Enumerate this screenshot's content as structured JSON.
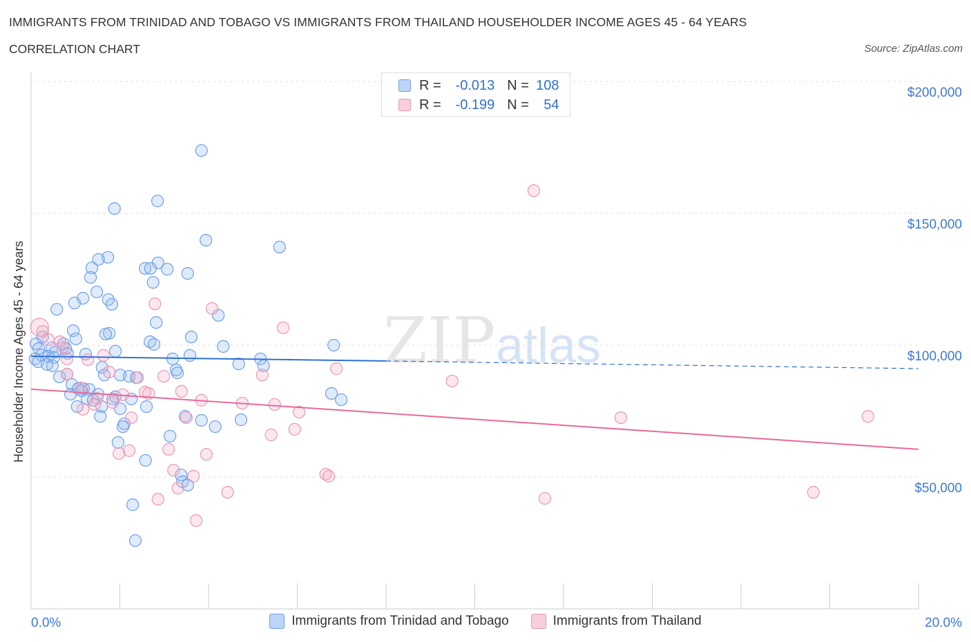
{
  "header": {
    "title": "IMMIGRANTS FROM TRINIDAD AND TOBAGO VS IMMIGRANTS FROM THAILAND HOUSEHOLDER INCOME AGES 45 - 64 YEARS",
    "subtitle": "CORRELATION CHART",
    "source": "Source: ZipAtlas.com"
  },
  "legend": [
    {
      "r_label": "R =",
      "r": "-0.013",
      "n_label": "N =",
      "n": "108"
    },
    {
      "r_label": "R =",
      "r": "-0.199",
      "n_label": "N =",
      "n": "54"
    }
  ],
  "colors": {
    "blue": "#6f9ee8",
    "blue_line": "#2f6fd3",
    "pink": "#e898b4",
    "pink_line": "#e8689a",
    "axis_text": "#3b78d8"
  },
  "chart_data": {
    "type": "scatter",
    "title": "IMMIGRANTS FROM TRINIDAD AND TOBAGO VS IMMIGRANTS FROM THAILAND HOUSEHOLDER INCOME AGES 45 - 64 YEARS",
    "xlabel": "",
    "ylabel": "Householder Income Ages 45 - 64 years",
    "xlim": [
      0,
      20
    ],
    "ylim": [
      0,
      200000
    ],
    "x_tick_labels": [
      "0.0%",
      "20.0%"
    ],
    "y_ticks": [
      50000,
      100000,
      150000,
      200000
    ],
    "y_tick_labels": [
      "$50,000",
      "$100,000",
      "$150,000",
      "$200,000"
    ],
    "grid": true,
    "legend_position": "bottom",
    "watermark": "ZIPatlas",
    "series": [
      {
        "name": "Immigrants from Trinidad and Tobago",
        "color": "#6f9ee8",
        "trend": [
          [
            0,
            95800
          ],
          [
            8,
            94000
          ],
          [
            20,
            91100
          ]
        ],
        "points": [
          [
            3.84,
            173800
          ],
          [
            1.88,
            151800
          ],
          [
            2.85,
            154700
          ],
          [
            3.94,
            139800
          ],
          [
            5.6,
            137200
          ],
          [
            1.73,
            133300
          ],
          [
            1.52,
            132500
          ],
          [
            2.86,
            131200
          ],
          [
            1.37,
            129300
          ],
          [
            2.57,
            129100
          ],
          [
            2.69,
            129100
          ],
          [
            3.07,
            128800
          ],
          [
            3.53,
            127200
          ],
          [
            1.34,
            125700
          ],
          [
            2.75,
            123800
          ],
          [
            1.48,
            120200
          ],
          [
            1.17,
            117800
          ],
          [
            1.74,
            117300
          ],
          [
            0.98,
            116000
          ],
          [
            1.82,
            115500
          ],
          [
            0.58,
            113600
          ],
          [
            4.22,
            111300
          ],
          [
            2.82,
            108600
          ],
          [
            0.95,
            105500
          ],
          [
            1.76,
            104500
          ],
          [
            1.68,
            104200
          ],
          [
            0.26,
            103100
          ],
          [
            3.61,
            103100
          ],
          [
            1.01,
            102400
          ],
          [
            2.68,
            101300
          ],
          [
            2.77,
            100300
          ],
          [
            0.11,
            100500
          ],
          [
            0.73,
            100500
          ],
          [
            6.82,
            100000
          ],
          [
            4.33,
            99500
          ],
          [
            0.47,
            99000
          ],
          [
            0.78,
            98700
          ],
          [
            0.17,
            98700
          ],
          [
            1.9,
            97700
          ],
          [
            0.54,
            97400
          ],
          [
            0.82,
            96900
          ],
          [
            1.23,
            96600
          ],
          [
            0.23,
            96300
          ],
          [
            3.58,
            96100
          ],
          [
            0.39,
            95800
          ],
          [
            0.51,
            95300
          ],
          [
            0.09,
            94800
          ],
          [
            3.19,
            94800
          ],
          [
            5.17,
            94800
          ],
          [
            0.16,
            93700
          ],
          [
            4.68,
            92900
          ],
          [
            0.36,
            92700
          ],
          [
            5.24,
            92200
          ],
          [
            0.48,
            92200
          ],
          [
            1.6,
            91600
          ],
          [
            3.27,
            90600
          ],
          [
            3.3,
            89500
          ],
          [
            0.81,
            89000
          ],
          [
            1.65,
            88700
          ],
          [
            2.01,
            88700
          ],
          [
            2.21,
            88200
          ],
          [
            0.64,
            88000
          ],
          [
            2.37,
            87700
          ],
          [
            0.92,
            85100
          ],
          [
            1.06,
            83500
          ],
          [
            1.18,
            83500
          ],
          [
            1.31,
            83200
          ],
          [
            1.14,
            82700
          ],
          [
            1.51,
            81400
          ],
          [
            0.89,
            81400
          ],
          [
            6.77,
            81700
          ],
          [
            1.9,
            80400
          ],
          [
            1.26,
            79600
          ],
          [
            2.26,
            79600
          ],
          [
            1.84,
            79600
          ],
          [
            1.4,
            79100
          ],
          [
            6.99,
            79300
          ],
          [
            1.04,
            76700
          ],
          [
            1.59,
            76700
          ],
          [
            2.01,
            75900
          ],
          [
            2.6,
            76700
          ],
          [
            1.56,
            73000
          ],
          [
            3.47,
            73000
          ],
          [
            3.84,
            71500
          ],
          [
            4.73,
            71700
          ],
          [
            2.1,
            70200
          ],
          [
            4.15,
            69100
          ],
          [
            2.07,
            69100
          ],
          [
            3.13,
            65500
          ],
          [
            1.96,
            63100
          ],
          [
            2.58,
            56300
          ],
          [
            3.38,
            50800
          ],
          [
            3.41,
            48200
          ],
          [
            3.53,
            46900
          ],
          [
            2.29,
            39500
          ],
          [
            2.35,
            25900
          ]
        ]
      },
      {
        "name": "Immigrants from Thailand",
        "color": "#e898b4",
        "trend": [
          [
            0,
            83300
          ],
          [
            20,
            60500
          ]
        ],
        "points": [
          [
            11.33,
            158600
          ],
          [
            2.79,
            115700
          ],
          [
            4.08,
            113900
          ],
          [
            5.68,
            106600
          ],
          [
            0.19,
            106800
          ],
          [
            0.26,
            105200
          ],
          [
            0.65,
            101300
          ],
          [
            0.39,
            102100
          ],
          [
            0.72,
            99200
          ],
          [
            1.63,
            96100
          ],
          [
            0.81,
            94800
          ],
          [
            1.28,
            94500
          ],
          [
            6.88,
            91100
          ],
          [
            1.76,
            89800
          ],
          [
            5.21,
            88700
          ],
          [
            2.99,
            88200
          ],
          [
            0.81,
            89000
          ],
          [
            2.4,
            87700
          ],
          [
            9.49,
            86400
          ],
          [
            1.12,
            83800
          ],
          [
            3.39,
            82500
          ],
          [
            2.57,
            82200
          ],
          [
            2.65,
            81700
          ],
          [
            2.07,
            81200
          ],
          [
            1.49,
            79800
          ],
          [
            3.84,
            79100
          ],
          [
            1.84,
            78300
          ],
          [
            4.76,
            78000
          ],
          [
            5.49,
            77500
          ],
          [
            1.43,
            77500
          ],
          [
            1.17,
            75700
          ],
          [
            6.04,
            74600
          ],
          [
            13.29,
            72500
          ],
          [
            18.86,
            73000
          ],
          [
            3.5,
            72500
          ],
          [
            2.26,
            72500
          ],
          [
            5.94,
            68100
          ],
          [
            5.41,
            66000
          ],
          [
            3.1,
            60500
          ],
          [
            2.21,
            60000
          ],
          [
            1.98,
            58900
          ],
          [
            3.95,
            58600
          ],
          [
            3.21,
            52600
          ],
          [
            3.66,
            50300
          ],
          [
            6.64,
            51100
          ],
          [
            6.71,
            50300
          ],
          [
            3.31,
            45800
          ],
          [
            4.43,
            44200
          ],
          [
            17.63,
            44200
          ],
          [
            11.58,
            41900
          ],
          [
            2.86,
            41600
          ],
          [
            3.72,
            33500
          ]
        ]
      }
    ]
  }
}
